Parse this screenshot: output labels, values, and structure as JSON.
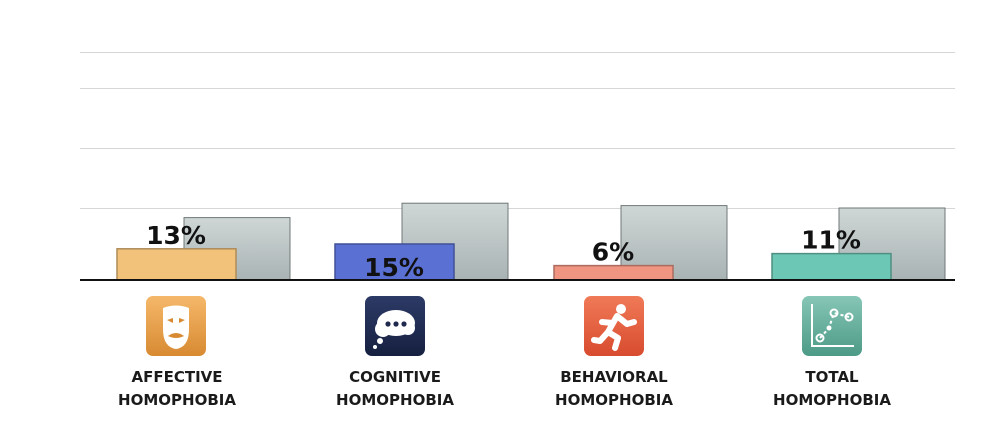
{
  "chart_data": {
    "type": "bar",
    "categories": [
      [
        "AFFECTIVE",
        "HOMOPHOBIA"
      ],
      [
        "COGNITIVE",
        "HOMOPHOBIA"
      ],
      [
        "BEHAVIORAL",
        "HOMOPHOBIA"
      ],
      [
        "TOTAL",
        "HOMOPHOBIA"
      ]
    ],
    "series": [
      {
        "values": [
          13,
          15,
          6,
          11
        ],
        "labels": [
          "13%",
          "15%",
          "6%",
          "11%"
        ],
        "colors": [
          "#f2c27b",
          "#5a70d2",
          "#ef9582",
          "#6cc7b5"
        ]
      },
      {
        "values": [
          26,
          32,
          31,
          30
        ],
        "color": "#b5bfbf"
      }
    ],
    "ylim": [
      0,
      95
    ],
    "grid": true,
    "legend": "none"
  },
  "icons": [
    {
      "name": "theater-mask-icon",
      "color": "#e39a3d"
    },
    {
      "name": "thought-bubble-icon",
      "color": "#1f2a4d"
    },
    {
      "name": "running-person-icon",
      "color": "#e85a3c"
    },
    {
      "name": "scatter-chart-icon",
      "color": "#5bab98"
    }
  ]
}
